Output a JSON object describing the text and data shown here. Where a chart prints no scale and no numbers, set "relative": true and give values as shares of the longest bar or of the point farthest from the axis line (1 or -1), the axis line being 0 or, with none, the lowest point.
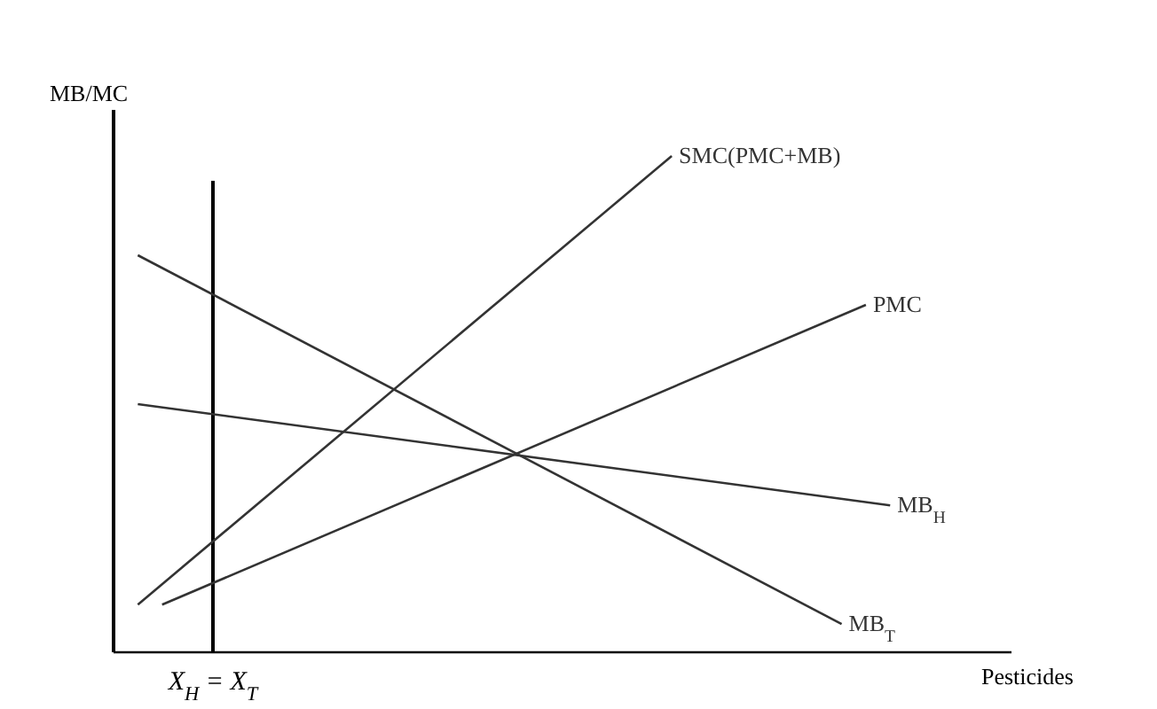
{
  "chart_data": {
    "type": "line",
    "relative": true,
    "xlabel": "Pesticides",
    "ylabel": "MB/MC",
    "marker": "none",
    "line_style": "solid",
    "categories": [
      null,
      null,
      null,
      null,
      null,
      null,
      null,
      null,
      null,
      null,
      null,
      null,
      null,
      null,
      null,
      null,
      null,
      null,
      null,
      null,
      null,
      null,
      null,
      null,
      null,
      null,
      null,
      null,
      null,
      null,
      null,
      null,
      null,
      null,
      null,
      null,
      null,
      null
    ],
    "series": [
      {
        "name": "SMC(PMC+MB)",
        "color": "#333333",
        "values": [
          null,
          0.096,
          null,
          null,
          null,
          null,
          null,
          null,
          null,
          null,
          null,
          null,
          null,
          null,
          null,
          null,
          null,
          null,
          null,
          null,
          null,
          null,
          null,
          1.0,
          null,
          null,
          null,
          null,
          null,
          null,
          null,
          null,
          null,
          null,
          null,
          null,
          null,
          null
        ]
      },
      {
        "name": "PMC",
        "color": "#333333",
        "values": [
          null,
          null,
          0.096,
          null,
          null,
          null,
          null,
          null,
          null,
          null,
          null,
          null,
          null,
          null,
          null,
          null,
          null,
          null,
          null,
          null,
          null,
          null,
          null,
          null,
          null,
          null,
          null,
          null,
          null,
          null,
          null,
          0.7,
          null,
          null,
          null,
          null,
          null,
          null
        ]
      },
      {
        "name": "MB$_{H}$",
        "color": "#333333",
        "values": [
          null,
          0.5,
          null,
          null,
          null,
          null,
          null,
          null,
          null,
          null,
          null,
          null,
          null,
          null,
          null,
          null,
          null,
          null,
          null,
          null,
          null,
          null,
          null,
          null,
          null,
          null,
          null,
          null,
          null,
          null,
          null,
          null,
          0.296,
          null,
          null,
          null,
          null,
          null
        ]
      },
      {
        "name": "MB$_{T}$",
        "color": "#333333",
        "values": [
          null,
          0.8,
          null,
          null,
          null,
          null,
          null,
          null,
          null,
          null,
          null,
          null,
          null,
          null,
          null,
          null,
          null,
          null,
          null,
          null,
          null,
          null,
          null,
          null,
          null,
          null,
          null,
          null,
          null,
          null,
          0.057,
          null,
          null,
          null,
          null,
          null,
          null,
          null
        ]
      }
    ],
    "annotations": [
      "X$_{H}$ = X$_{T}$"
    ]
  }
}
